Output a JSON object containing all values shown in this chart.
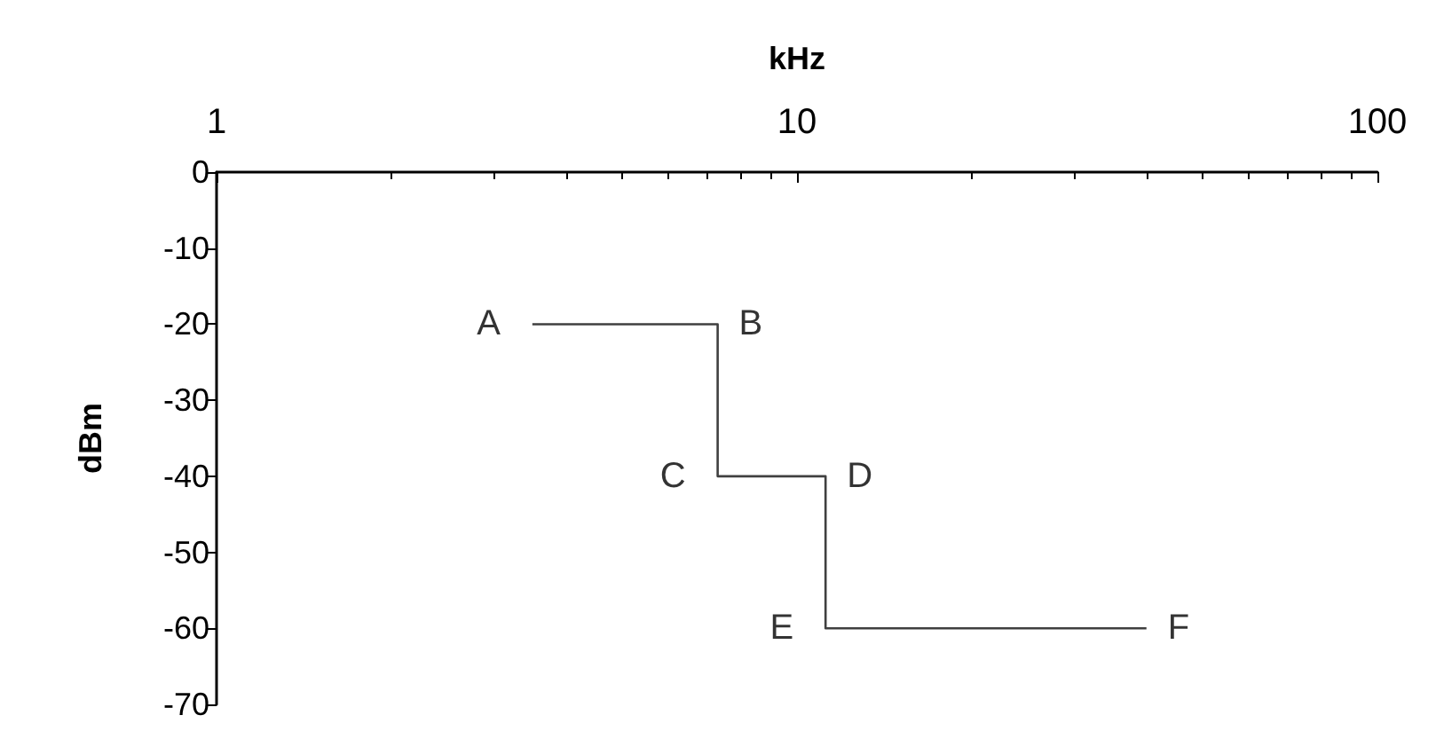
{
  "chart_data": {
    "type": "line",
    "xlabel": "kHz",
    "ylabel": "dBm",
    "log": "x",
    "xlim": [
      1,
      100
    ],
    "xticks": [
      1,
      10,
      100
    ],
    "ylim": [
      -70,
      0
    ],
    "yticks": [
      -70,
      -60,
      -50,
      -40,
      -30,
      -20,
      -10,
      0
    ],
    "grid": false,
    "marker": "none",
    "line_style": "solid",
    "series": [
      {
        "color": "#404040",
        "x": [
          3.5,
          7.3,
          7.3,
          11.2,
          11.2,
          40
        ],
        "values": [
          -20,
          -20,
          -40,
          -40,
          -60,
          -60
        ]
      }
    ],
    "annotations": [
      {
        "text": "A",
        "x": 3.5,
        "y": -20
      },
      {
        "text": "B",
        "x": 7.3,
        "y": -20
      },
      {
        "text": "C",
        "x": 7.3,
        "y": -40
      },
      {
        "text": "D",
        "x": 11.2,
        "y": -40
      },
      {
        "text": "E",
        "x": 11.2,
        "y": -60
      },
      {
        "text": "F",
        "x": 40,
        "y": -60
      }
    ]
  }
}
